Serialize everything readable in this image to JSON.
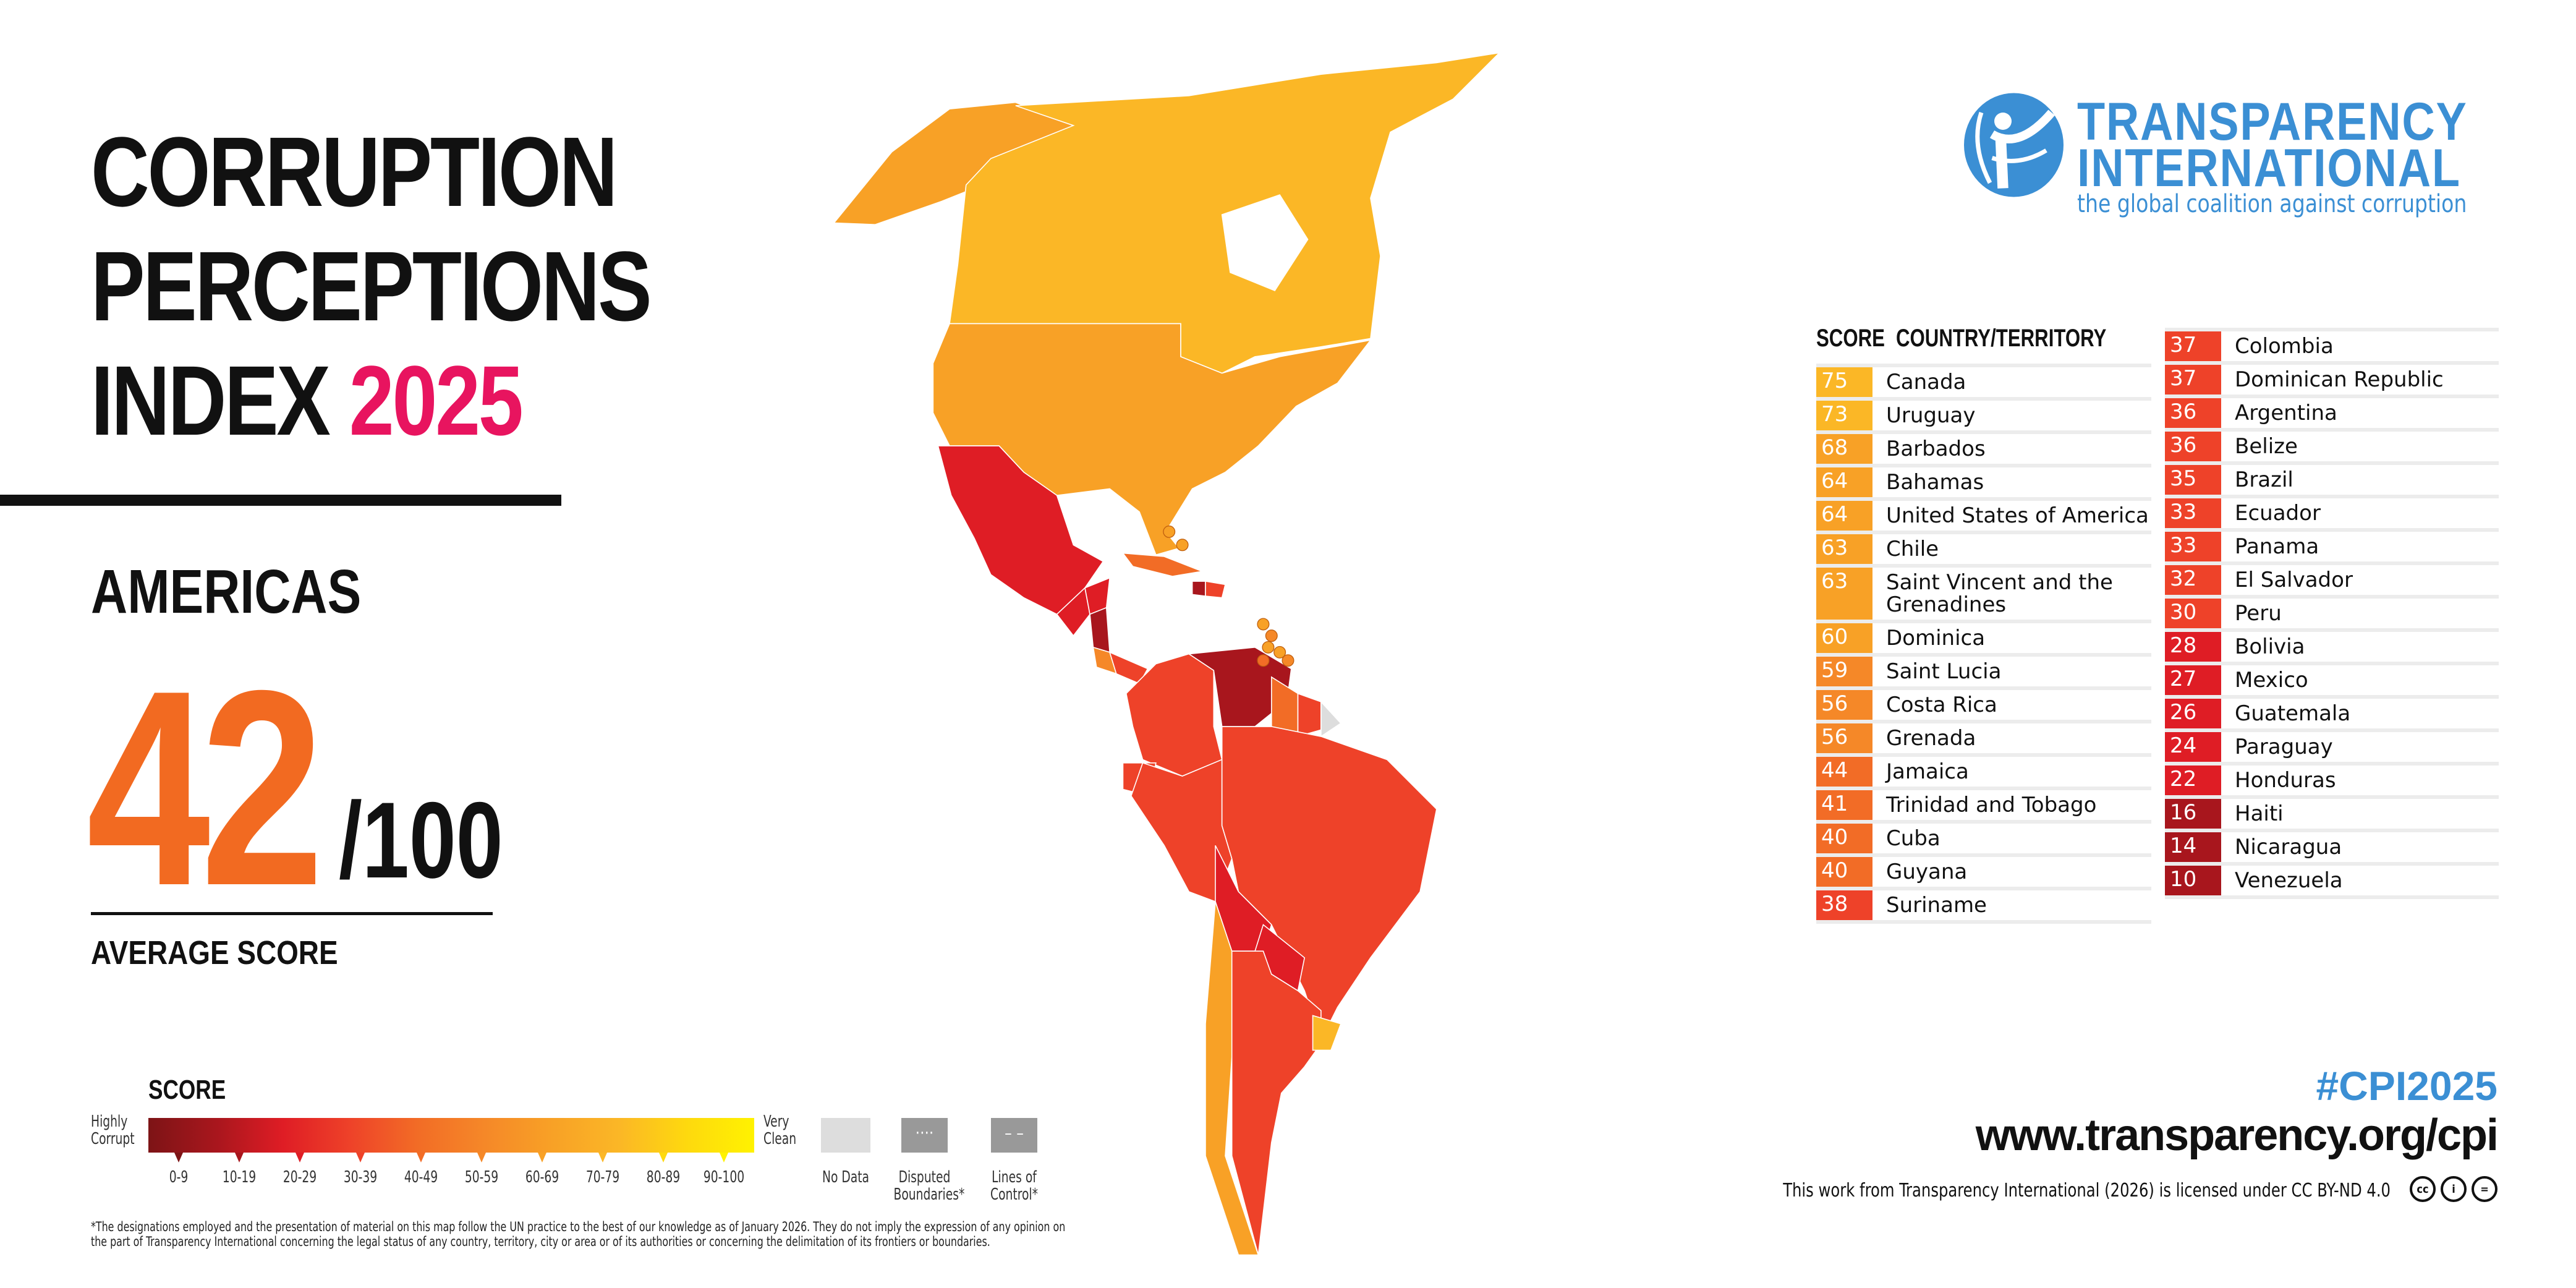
{
  "title": {
    "line1": "CORRUPTION",
    "line2": "PERCEPTIONS",
    "line3_prefix": "INDEX",
    "year": "2025"
  },
  "region": "AMERICAS",
  "average": {
    "score": "42",
    "out_of": "/100",
    "label": "AVERAGE SCORE"
  },
  "legend": {
    "title": "SCORE",
    "low_label": "Highly Corrupt",
    "high_label": "Very Clean",
    "ranges": [
      "0-9",
      "10-19",
      "20-29",
      "30-39",
      "40-49",
      "50-59",
      "60-69",
      "70-79",
      "80-89",
      "90-100"
    ],
    "colors": [
      "#7d1416",
      "#a8161d",
      "#df1d25",
      "#ee4229",
      "#f26c26",
      "#f58828",
      "#f8a126",
      "#fbb726",
      "#fed90e",
      "#fff200"
    ],
    "no_data": "No Data",
    "no_data_color": "#dddddd",
    "disputed": "Disputed Boundaries*",
    "lines_of_control": "Lines of Control*"
  },
  "table": {
    "header_score": "SCORE",
    "header_country": "COUNTRY/TERRITORY",
    "left": [
      {
        "score": 75,
        "country": "Canada"
      },
      {
        "score": 73,
        "country": "Uruguay"
      },
      {
        "score": 68,
        "country": "Barbados"
      },
      {
        "score": 64,
        "country": "Bahamas"
      },
      {
        "score": 64,
        "country": "United States of America"
      },
      {
        "score": 63,
        "country": "Chile"
      },
      {
        "score": 63,
        "country": "Saint Vincent and the Grenadines"
      },
      {
        "score": 60,
        "country": "Dominica"
      },
      {
        "score": 59,
        "country": "Saint Lucia"
      },
      {
        "score": 56,
        "country": "Costa Rica"
      },
      {
        "score": 56,
        "country": "Grenada"
      },
      {
        "score": 44,
        "country": "Jamaica"
      },
      {
        "score": 41,
        "country": "Trinidad and Tobago"
      },
      {
        "score": 40,
        "country": "Cuba"
      },
      {
        "score": 40,
        "country": "Guyana"
      },
      {
        "score": 38,
        "country": "Suriname"
      }
    ],
    "right": [
      {
        "score": 37,
        "country": "Colombia"
      },
      {
        "score": 37,
        "country": "Dominican Republic"
      },
      {
        "score": 36,
        "country": "Argentina"
      },
      {
        "score": 36,
        "country": "Belize"
      },
      {
        "score": 35,
        "country": "Brazil"
      },
      {
        "score": 33,
        "country": "Ecuador"
      },
      {
        "score": 33,
        "country": "Panama"
      },
      {
        "score": 32,
        "country": "El Salvador"
      },
      {
        "score": 30,
        "country": "Peru"
      },
      {
        "score": 28,
        "country": "Bolivia"
      },
      {
        "score": 27,
        "country": "Mexico"
      },
      {
        "score": 26,
        "country": "Guatemala"
      },
      {
        "score": 24,
        "country": "Paraguay"
      },
      {
        "score": 22,
        "country": "Honduras"
      },
      {
        "score": 16,
        "country": "Haiti"
      },
      {
        "score": 14,
        "country": "Nicaragua"
      },
      {
        "score": 10,
        "country": "Venezuela"
      }
    ]
  },
  "logo": {
    "line1": "TRANSPARENCY",
    "line2": "INTERNATIONAL",
    "tagline": "the global coalition against corruption",
    "color": "#3b8fd4"
  },
  "hashtag": "#CPI2025",
  "url": "www.transparency.org/cpi",
  "license": "This work from Transparency International (2026) is licensed under CC BY-ND 4.0",
  "license_icons": [
    "cc",
    "i",
    "="
  ],
  "footnote": "*The designations employed and the presentation of material on this map follow the UN practice to the best of our knowledge as of January 2026. They do not imply the expression of any opinion on the part of Transparency International concerning the legal status of any country, territory, city or area or of its authorities or concerning the delimitation of its frontiers or boundaries."
}
